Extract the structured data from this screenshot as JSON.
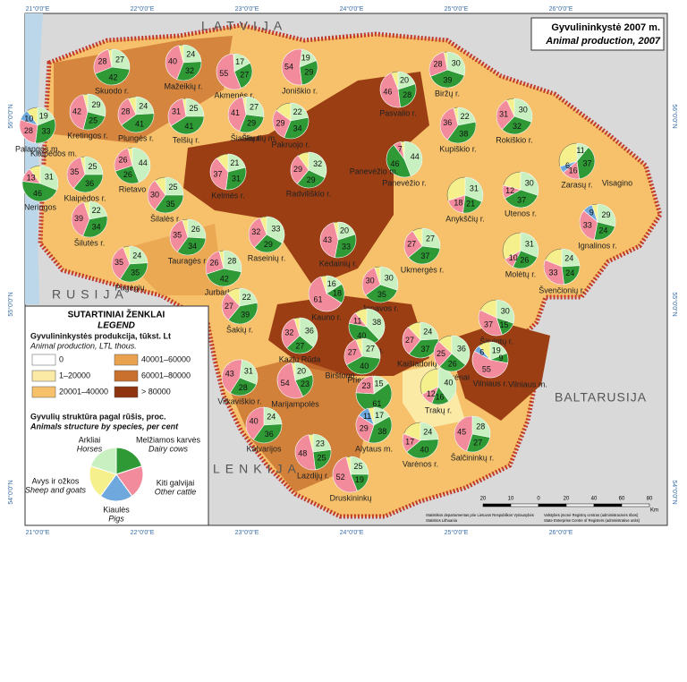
{
  "title": {
    "lt": "Gyvulininkystė 2007 m.",
    "en": "Animal production, 2007"
  },
  "countries": [
    "LATVIJA",
    "RUSIJA",
    "BALTARUSIJA",
    "LENKIJA"
  ],
  "lon_labels": [
    "21°0'0\"E",
    "22°0'0\"E",
    "23°0'0\"E",
    "24°0'0\"E",
    "25°0'0\"E",
    "26°0'0\"E"
  ],
  "lat_labels": [
    "56°0'0\"N",
    "55°0'0\"N",
    "54°0'0\"N"
  ],
  "scale": {
    "ticks": [
      "20",
      "10",
      "0",
      "20",
      "40",
      "60",
      "80"
    ],
    "unit": "Km"
  },
  "credits": [
    "Statistikos departamentas prie Lietuvos Respublikos Vyriausybės",
    "Statistics Lithuania",
    "Valstybės įmonė Registrų centras (administracinės ribos)",
    "State Enterprise Centre of Registers (administrative units)"
  ],
  "legend": {
    "heading_lt": "SUTARTINIAI ŽENKLAI",
    "heading_en": "LEGEND",
    "production_lt": "Gyvulininkystės produkcija, tūkst. Lt",
    "production_en": "Animal production, LTL thous.",
    "classes": [
      {
        "label": "0",
        "color": "#ffffff"
      },
      {
        "label": "1–20000",
        "color": "#fbe9a6"
      },
      {
        "label": "20001–40000",
        "color": "#f6c16a"
      },
      {
        "label": "40001–60000",
        "color": "#e9a24e"
      },
      {
        "label": "60001–80000",
        "color": "#c9702f"
      },
      {
        "label": "> 80000",
        "color": "#8e3510"
      }
    ],
    "structure_lt": "Gyvulių struktūra pagal rūšis, proc.",
    "structure_en": "Animals structure by species, per cent",
    "species": [
      {
        "lt": "Melžiamos karvės",
        "en": "Dairy cows",
        "color": "#c8f0c0"
      },
      {
        "lt": "Kiti galvijai",
        "en": "Other cattle",
        "color": "#2f9a35"
      },
      {
        "lt": "Kiaulės",
        "en": "Pigs",
        "color": "#f28c9c"
      },
      {
        "lt": "Avys ir ožkos",
        "en": "Sheep and goats",
        "color": "#6fa8dc"
      },
      {
        "lt": "Arkliai",
        "en": "Horses",
        "color": "#f5f08c"
      }
    ]
  },
  "regions": [
    {
      "name": "Skuodo r.",
      "values": [
        27,
        42,
        28
      ]
    },
    {
      "name": "Mažeikių r.",
      "values": [
        24,
        32,
        40
      ]
    },
    {
      "name": "Akmenės r.",
      "values": [
        17,
        27,
        55
      ]
    },
    {
      "name": "Joniškio r.",
      "values": [
        19,
        29,
        54
      ]
    },
    {
      "name": "Pasvalio r.",
      "values": [
        20,
        28,
        46
      ]
    },
    {
      "name": "Biržų r.",
      "values": [
        30,
        39,
        28
      ]
    },
    {
      "name": "Palangos m.",
      "values": [
        19,
        33,
        28,
        10
      ]
    },
    {
      "name": "Kretingos r.",
      "values": [
        29,
        25,
        42
      ]
    },
    {
      "name": "Plungės r.",
      "values": [
        24,
        41,
        28
      ]
    },
    {
      "name": "Telšių r.",
      "values": [
        25,
        41,
        31
      ]
    },
    {
      "name": "Šiaulių r.",
      "values": [
        27,
        29,
        41
      ]
    },
    {
      "name": "Pakruojo r.",
      "values": [
        22,
        34,
        29
      ]
    },
    {
      "name": "Kupiškio r.",
      "values": [
        22,
        38,
        36
      ]
    },
    {
      "name": "Rokiškio r.",
      "values": [
        30,
        32,
        31
      ]
    },
    {
      "name": "Zarasų r.",
      "values": [
        11,
        37,
        16,
        6
      ]
    },
    {
      "name": "Panevėžio r.",
      "values": [
        44,
        46,
        7
      ]
    },
    {
      "name": "Radviliškio r.",
      "values": [
        32,
        29,
        29
      ]
    },
    {
      "name": "Kelmės r.",
      "values": [
        21,
        31,
        37
      ]
    },
    {
      "name": "Kėdainių r.",
      "values": [
        20,
        33,
        43
      ]
    },
    {
      "name": "Raseinių r.",
      "values": [
        33,
        29,
        32
      ]
    },
    {
      "name": "Anykščių r.",
      "values": [
        31,
        21,
        18
      ]
    },
    {
      "name": "Utenos r.",
      "values": [
        30,
        37,
        12
      ]
    },
    {
      "name": "Ignalinos r.",
      "values": [
        29,
        24,
        33,
        9
      ]
    },
    {
      "name": "Molėtų r.",
      "values": [
        31,
        26,
        10
      ]
    },
    {
      "name": "Švenčionių r.",
      "values": [
        24,
        24,
        33
      ]
    },
    {
      "name": "Ukmergės r.",
      "values": [
        27,
        37,
        27
      ]
    },
    {
      "name": "Jonavos r.",
      "values": [
        30,
        35,
        30
      ]
    },
    {
      "name": "Šilalės r.",
      "values": [
        25,
        35,
        30
      ]
    },
    {
      "name": "Rietavo",
      "values": [
        44,
        26,
        26
      ]
    },
    {
      "name": "Klaipėdos r.",
      "values": [
        25,
        36,
        35
      ]
    },
    {
      "name": "Neringos",
      "values": [
        31,
        46,
        13
      ]
    },
    {
      "name": "Šilutės r.",
      "values": [
        22,
        34,
        39
      ]
    },
    {
      "name": "Tauragės r.",
      "values": [
        26,
        34,
        35
      ]
    },
    {
      "name": "Pagėgių",
      "values": [
        24,
        35,
        35
      ]
    },
    {
      "name": "Jurbarko r.",
      "values": [
        28,
        42,
        26
      ]
    },
    {
      "name": "Šakių r.",
      "values": [
        22,
        39,
        27
      ]
    },
    {
      "name": "Kauno r.",
      "values": [
        16,
        18,
        61
      ]
    },
    {
      "name": "Kazlų Rūda",
      "values": [
        36,
        27,
        32
      ]
    },
    {
      "name": "Kauno m.",
      "values": [
        38,
        40,
        11
      ]
    },
    {
      "name": "Kaišiadorių r.",
      "values": [
        24,
        37,
        27
      ]
    },
    {
      "name": "Širvintų r.",
      "values": [
        30,
        15,
        37
      ]
    },
    {
      "name": "Elektrėnai",
      "values": [
        36,
        26,
        25
      ]
    },
    {
      "name": "Vilniaus r.",
      "values": [
        19,
        9,
        55,
        6
      ]
    },
    {
      "name": "Trakų r.",
      "values": [
        40,
        16,
        12
      ]
    },
    {
      "name": "Vilkaviškio r.",
      "values": [
        31,
        28,
        43
      ]
    },
    {
      "name": "Marijampolės",
      "values": [
        20,
        23,
        54
      ]
    },
    {
      "name": "Prienų r.",
      "values": [
        27,
        40,
        27
      ]
    },
    {
      "name": "Kalvarijos",
      "values": [
        24,
        36,
        40
      ]
    },
    {
      "name": "Lazdijų r.",
      "values": [
        23,
        25,
        48
      ]
    },
    {
      "name": "Alytaus r.",
      "values": [
        15,
        61,
        23
      ]
    },
    {
      "name": "Alytaus m.",
      "values": [
        17,
        38,
        29,
        11
      ]
    },
    {
      "name": "Druskininkų",
      "values": [
        25,
        19,
        52
      ]
    },
    {
      "name": "Varėnos r.",
      "values": [
        24,
        40,
        17
      ]
    },
    {
      "name": "Šalčininkų r.",
      "values": [
        28,
        27,
        45
      ]
    }
  ],
  "places": [
    "Šiaulių m.",
    "Panevėžio m.",
    "Klaipėdos m.",
    "Visagino",
    "Vilniaus m.",
    "Birštono"
  ]
}
